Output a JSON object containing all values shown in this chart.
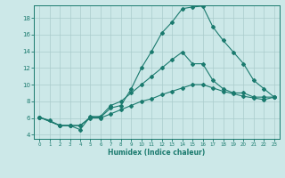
{
  "xlabel": "Humidex (Indice chaleur)",
  "bg_color": "#cce8e8",
  "line_color": "#1a7a6e",
  "grid_color": "#aacccc",
  "xlim": [
    -0.5,
    23.5
  ],
  "ylim": [
    3.5,
    19.5
  ],
  "yticks": [
    4,
    6,
    8,
    10,
    12,
    14,
    16,
    18
  ],
  "xticks": [
    0,
    1,
    2,
    3,
    4,
    5,
    6,
    7,
    8,
    9,
    10,
    11,
    12,
    13,
    14,
    15,
    16,
    17,
    18,
    19,
    20,
    21,
    22,
    23
  ],
  "line1_x": [
    0,
    1,
    2,
    3,
    4,
    5,
    6,
    7,
    8,
    9,
    10,
    11,
    12,
    13,
    14,
    15,
    16,
    17,
    18,
    19,
    20,
    21,
    22,
    23
  ],
  "line1_y": [
    6.1,
    5.7,
    5.1,
    5.1,
    4.6,
    6.2,
    6.1,
    7.2,
    7.5,
    9.5,
    12.0,
    14.0,
    16.2,
    17.5,
    19.1,
    19.3,
    19.4,
    16.9,
    15.3,
    13.9,
    12.5,
    10.5,
    9.5,
    8.5
  ],
  "line2_x": [
    0,
    2,
    3,
    4,
    5,
    6,
    7,
    8,
    9,
    10,
    11,
    12,
    13,
    14,
    15,
    16,
    17,
    18,
    19,
    20,
    21,
    22,
    23
  ],
  "line2_y": [
    6.1,
    5.1,
    5.1,
    5.1,
    6.1,
    6.2,
    7.5,
    8.0,
    9.0,
    10.0,
    11.0,
    12.0,
    13.0,
    13.9,
    12.5,
    12.5,
    10.5,
    9.5,
    9.0,
    9.0,
    8.5,
    8.5,
    8.5
  ],
  "line3_x": [
    0,
    2,
    3,
    4,
    5,
    6,
    7,
    8,
    9,
    10,
    11,
    12,
    13,
    14,
    15,
    16,
    17,
    18,
    19,
    20,
    21,
    22,
    23
  ],
  "line3_y": [
    6.1,
    5.1,
    5.1,
    5.1,
    6.0,
    6.0,
    6.5,
    7.0,
    7.5,
    8.0,
    8.3,
    8.8,
    9.2,
    9.6,
    10.0,
    10.0,
    9.6,
    9.2,
    8.9,
    8.6,
    8.4,
    8.2,
    8.5
  ]
}
